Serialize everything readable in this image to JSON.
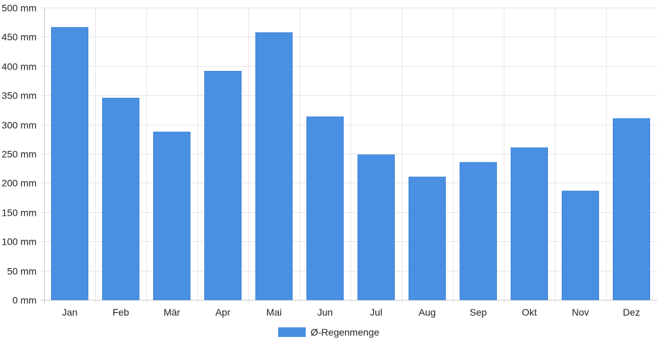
{
  "chart_data": {
    "type": "bar",
    "categories": [
      "Jan",
      "Feb",
      "Mär",
      "Apr",
      "Mai",
      "Jun",
      "Jul",
      "Aug",
      "Sep",
      "Okt",
      "Nov",
      "Dez"
    ],
    "series": [
      {
        "name": "Ø-Regenmenge",
        "values": [
          466,
          345,
          287,
          391,
          457,
          313,
          248,
          210,
          235,
          260,
          186,
          310
        ],
        "color": "#4a90e2"
      }
    ],
    "ylim": [
      0,
      500
    ],
    "y_ticks": [
      0,
      50,
      100,
      150,
      200,
      250,
      300,
      350,
      400,
      450,
      500
    ],
    "y_tick_suffix": " mm",
    "grid": true,
    "legend_position": "bottom-center"
  }
}
